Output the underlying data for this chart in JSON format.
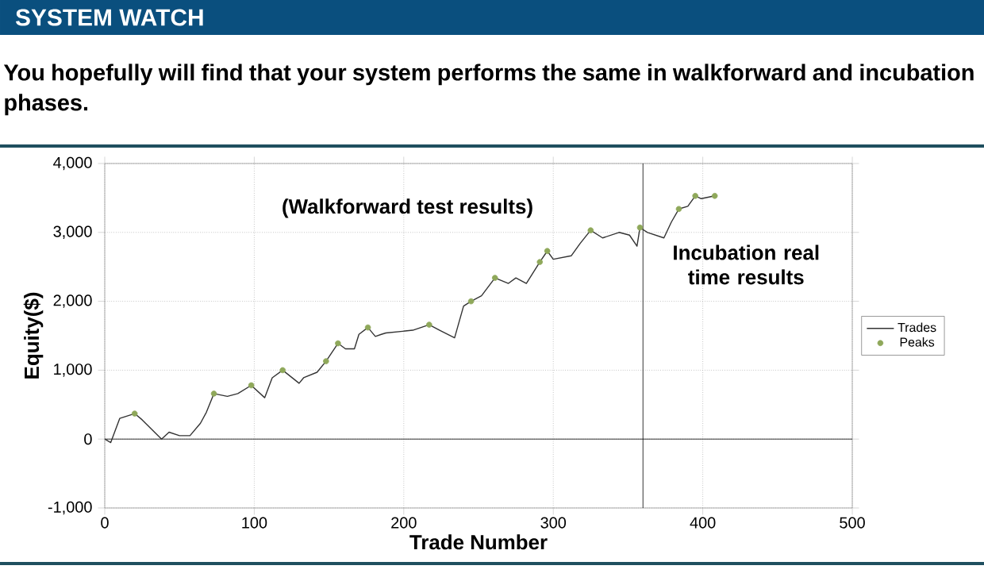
{
  "chart_data": {
    "type": "line",
    "title": "SYSTEM WATCH",
    "subtitle": "You hopefully will find that your system performs the same in walkforward and incubation phases.",
    "xlabel": "Trade Number",
    "ylabel": "Equity($)",
    "annotations": [
      "(Walkforward test results)"
    ],
    "series": [
      {
        "name": "Trades",
        "color": "#333333",
        "x": [
          0,
          4,
          10,
          20,
          25,
          38,
          43,
          50,
          57,
          64,
          68,
          73,
          82,
          89,
          98,
          107,
          112,
          119,
          130,
          133,
          142,
          148,
          156,
          161,
          167,
          170,
          176,
          181,
          185,
          188,
          206,
          217,
          224,
          234,
          240,
          245,
          252,
          261,
          270,
          275,
          282,
          291,
          296,
          300,
          312,
          318,
          325,
          333,
          344,
          351,
          356,
          358,
          363,
          374,
          379,
          384,
          390,
          395,
          399,
          408
        ],
        "values": [
          0,
          -50,
          300,
          370,
          280,
          0,
          100,
          50,
          50,
          230,
          390,
          660,
          620,
          660,
          780,
          600,
          890,
          1000,
          810,
          890,
          970,
          1130,
          1390,
          1310,
          1310,
          1520,
          1620,
          1490,
          1520,
          1540,
          1580,
          1660,
          1580,
          1470,
          1930,
          2000,
          2080,
          2340,
          2260,
          2340,
          2260,
          2570,
          2730,
          2610,
          2660,
          2840,
          3030,
          2920,
          3000,
          2960,
          2800,
          3070,
          3000,
          2920,
          3150,
          3340,
          3380,
          3530,
          3490,
          3530
        ]
      },
      {
        "name": "Peaks",
        "type": "scatter",
        "marker": "circle",
        "color": "#8fa85a",
        "x": [
          20,
          73,
          98,
          119,
          148,
          156,
          176,
          217,
          245,
          261,
          291,
          296,
          325,
          358,
          384,
          395,
          408
        ],
        "values": [
          370,
          660,
          780,
          1000,
          1130,
          1390,
          1620,
          1660,
          2000,
          2340,
          2570,
          2730,
          3030,
          3070,
          3340,
          3530,
          3530
        ]
      }
    ],
    "xlim": [
      0,
      500
    ],
    "xticks": [
      0,
      100,
      200,
      300,
      400,
      500
    ],
    "ylim": [
      -1000,
      4000
    ],
    "yticks": [
      {
        "value": -1000,
        "label": "-1,000"
      },
      {
        "value": 0,
        "label": "0"
      },
      {
        "value": 1000,
        "label": "1,000"
      },
      {
        "value": 2000,
        "label": "2,000"
      },
      {
        "value": 3000,
        "label": "3,000"
      },
      {
        "value": 4000,
        "label": "4,000"
      }
    ],
    "ref_lines": [
      {
        "axis": "y",
        "value": 0,
        "color": "#000000"
      },
      {
        "axis": "x",
        "value": 360,
        "color": "#000000",
        "label": "Incubation real time results"
      }
    ],
    "grid": true,
    "legend": "right",
    "line_style": "solid"
  }
}
